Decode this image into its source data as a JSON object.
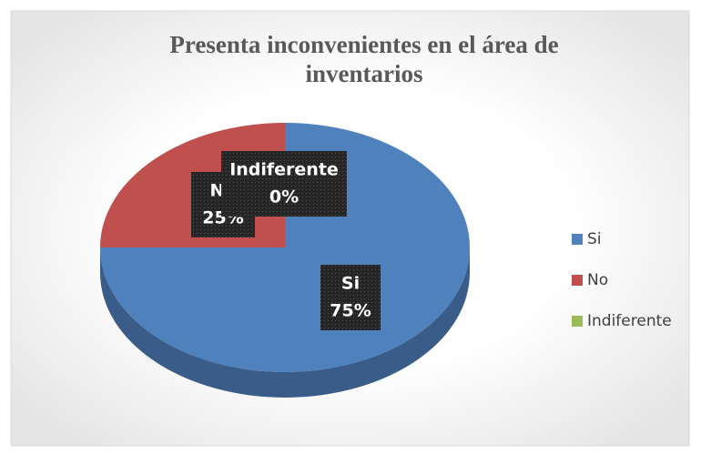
{
  "chart_data": {
    "type": "pie",
    "title": "Presenta inconvenientes en el área de inventarios",
    "categories": [
      "Si",
      "No",
      "Indiferente"
    ],
    "values": [
      75,
      25,
      0
    ],
    "value_labels": [
      "75%",
      "25%",
      "0%"
    ],
    "colors": [
      "#4f81bd",
      "#c0504d",
      "#9bbb59"
    ],
    "legend": "right"
  }
}
